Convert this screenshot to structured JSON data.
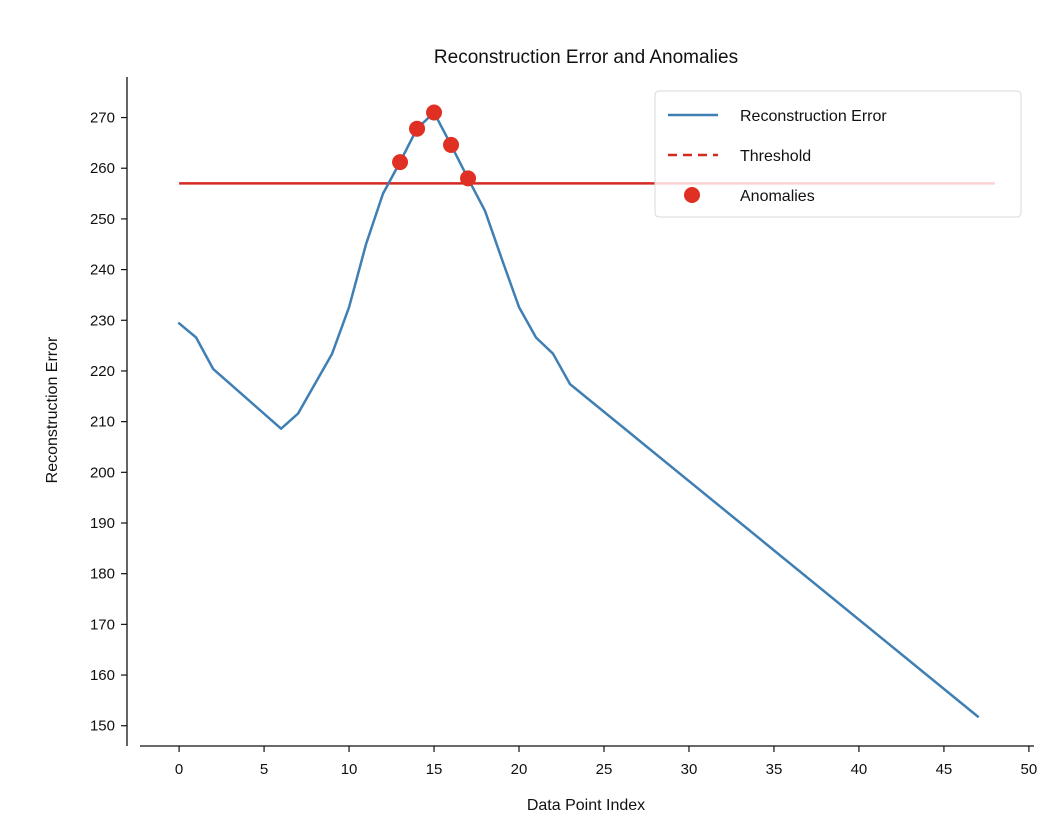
{
  "chart_data": {
    "type": "line",
    "title": "Reconstruction Error and Anomalies",
    "xlabel": "Data Point Index",
    "ylabel": "Reconstruction Error",
    "xlim": [
      -2.3,
      50.3
    ],
    "ylim": [
      146,
      278
    ],
    "xticks": [
      "0",
      "5",
      "10",
      "15",
      "20",
      "25",
      "30",
      "35",
      "40",
      "45",
      "50"
    ],
    "yticks": [
      "150",
      "160",
      "170",
      "180",
      "190",
      "200",
      "210",
      "220",
      "230",
      "240",
      "250",
      "260",
      "270"
    ],
    "grid": false,
    "legend_position": "top-right",
    "colors": {
      "series": "#3f7fb3",
      "threshold": "#d42a22",
      "anomaly": "#e03024"
    },
    "series": [
      {
        "name": "Reconstruction Error",
        "x": [
          0,
          1,
          2,
          6,
          7,
          9,
          10,
          11,
          12,
          13,
          14,
          15,
          16,
          17,
          18,
          19,
          20,
          21,
          22,
          23,
          47
        ],
        "y": [
          229.4,
          226.6,
          220.4,
          208.6,
          211.6,
          223.4,
          232.6,
          245,
          255,
          261.2,
          267.8,
          271,
          264.6,
          258,
          251.6,
          242,
          232.6,
          226.6,
          223.4,
          217.4,
          151.8
        ]
      },
      {
        "name": "Threshold",
        "x": [
          0,
          48
        ],
        "y": [
          257,
          257
        ]
      },
      {
        "name": "Anomalies",
        "x": [
          13,
          14,
          15,
          16,
          17
        ],
        "y": [
          261.2,
          267.8,
          271,
          264.6,
          258
        ]
      }
    ]
  }
}
